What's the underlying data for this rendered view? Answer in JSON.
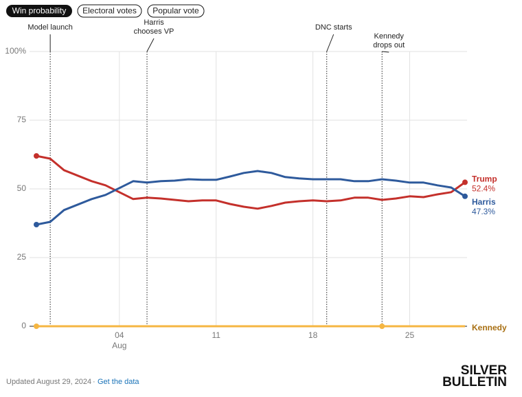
{
  "tabs": [
    "Win probability",
    "Electoral votes",
    "Popular vote"
  ],
  "chart_data": {
    "type": "line",
    "x": [
      "07-29",
      "07-30",
      "07-31",
      "08-01",
      "08-02",
      "08-03",
      "08-04",
      "08-05",
      "08-06",
      "08-07",
      "08-08",
      "08-09",
      "08-10",
      "08-11",
      "08-12",
      "08-13",
      "08-14",
      "08-15",
      "08-16",
      "08-17",
      "08-18",
      "08-19",
      "08-20",
      "08-21",
      "08-22",
      "08-23",
      "08-24",
      "08-25",
      "08-26",
      "08-27",
      "08-28",
      "08-29"
    ],
    "xlim": [
      "07-29",
      "08-29"
    ],
    "xticks": [
      {
        "value": "08-04",
        "label": "04"
      },
      {
        "value": "08-11",
        "label": "11"
      },
      {
        "value": "08-18",
        "label": "18"
      },
      {
        "value": "08-25",
        "label": "25"
      }
    ],
    "month_labels": [
      {
        "value": "08-04",
        "label": "Aug"
      }
    ],
    "ylim": [
      0,
      100
    ],
    "yticks": [
      0,
      25,
      50,
      75,
      {
        "value": 100,
        "label": "100%"
      }
    ],
    "grid": true,
    "series": [
      {
        "name": "Trump",
        "color": "#c4302b",
        "label_color": "#c4302b",
        "values": [
          62.0,
          61.0,
          56.8,
          54.8,
          52.8,
          51.3,
          48.8,
          46.3,
          46.8,
          46.5,
          46.0,
          45.5,
          45.8,
          45.8,
          44.5,
          43.5,
          42.8,
          43.8,
          45.0,
          45.5,
          45.8,
          45.5,
          45.8,
          46.8,
          46.8,
          46.0,
          46.5,
          47.3,
          47.0,
          48.0,
          48.8,
          52.4
        ],
        "value_labels": [
          null,
          null,
          null,
          null,
          null,
          null,
          null,
          null,
          null,
          null,
          null,
          null,
          null,
          null,
          null,
          null,
          null,
          null,
          null,
          null,
          null,
          null,
          null,
          null,
          null,
          null,
          null,
          null,
          null,
          null,
          null,
          "52.4%"
        ],
        "dots": [
          "07-29",
          "08-29"
        ]
      },
      {
        "name": "Harris",
        "color": "#2e5a9c",
        "label_color": "#2e5a9c",
        "values": [
          37.0,
          38.0,
          42.3,
          44.3,
          46.3,
          47.8,
          50.3,
          52.8,
          52.3,
          52.8,
          53.0,
          53.5,
          53.3,
          53.3,
          54.5,
          55.8,
          56.5,
          55.8,
          54.3,
          53.8,
          53.5,
          53.5,
          53.5,
          52.8,
          52.8,
          53.5,
          53.0,
          52.3,
          52.3,
          51.3,
          50.5,
          47.3
        ],
        "value_labels": [
          null,
          null,
          null,
          null,
          null,
          null,
          null,
          null,
          null,
          null,
          null,
          null,
          null,
          null,
          null,
          null,
          null,
          null,
          null,
          null,
          null,
          null,
          null,
          null,
          null,
          null,
          null,
          null,
          null,
          null,
          null,
          "47.3%"
        ],
        "dots": [
          "07-29",
          "08-29"
        ]
      },
      {
        "name": "Kennedy",
        "color": "#f5b642",
        "label_color": "#a86f12",
        "values": [
          0,
          0,
          0,
          0,
          0,
          0,
          0,
          0,
          0,
          0,
          0,
          0,
          0,
          0,
          0,
          0,
          0,
          0,
          0,
          0,
          0,
          0,
          0,
          0,
          0,
          0,
          0,
          0,
          0,
          0,
          0,
          0
        ],
        "dots": [
          "07-29",
          "08-23"
        ]
      }
    ],
    "annotations": [
      {
        "x": "07-30",
        "lines": [
          "Model launch"
        ]
      },
      {
        "x": "08-06",
        "lines": [
          "Harris",
          "chooses VP"
        ]
      },
      {
        "x": "08-19",
        "lines": [
          "DNC starts"
        ]
      },
      {
        "x": "08-23",
        "lines": [
          "Kennedy",
          "drops out"
        ]
      }
    ]
  },
  "footer": {
    "updated": "Updated August 29, 2024",
    "separator": "·",
    "link": "Get the data"
  },
  "logo": [
    "SILVER",
    "BULLETIN"
  ]
}
